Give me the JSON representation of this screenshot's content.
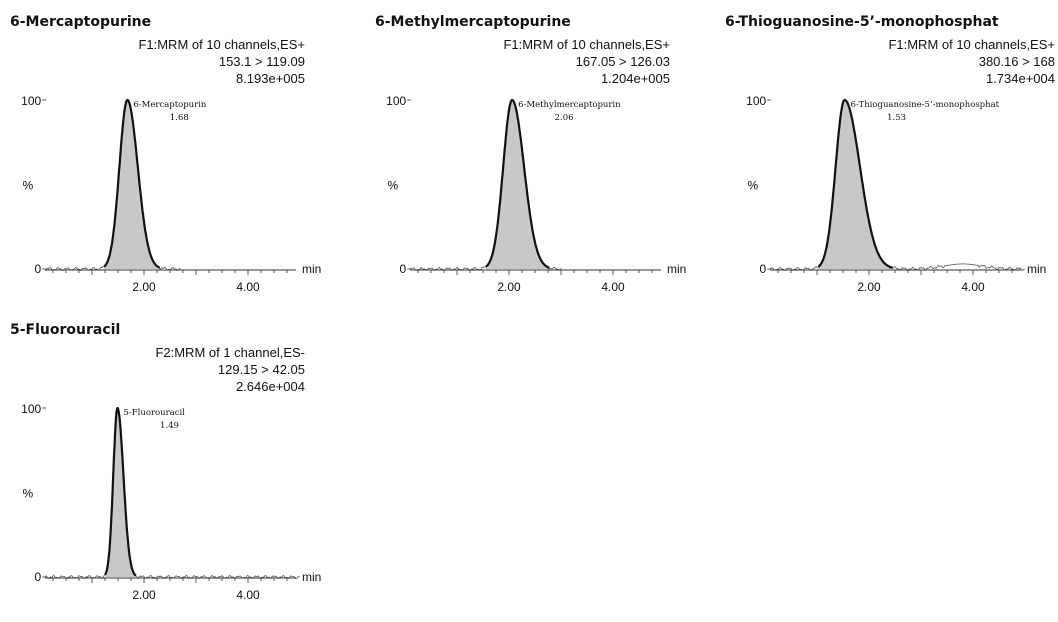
{
  "chart_data": [
    {
      "type": "area",
      "title": "6-Mercaptopurine",
      "info_lines": [
        "F1:MRM of 10 channels,ES+",
        "153.1 > 119.09",
        "8.193e+005"
      ],
      "y_label": "%",
      "y_ticks": [
        "100",
        "0"
      ],
      "x_unit": "min",
      "x_ticks": [
        "2.00",
        "4.00"
      ],
      "xlim": [
        0,
        5
      ],
      "ylim": [
        0,
        100
      ],
      "peak": {
        "name": "6-Mercaptopurin",
        "rt_label": "1.68",
        "rt": 1.68,
        "height": 100,
        "left_width": 0.32,
        "right_width": 0.42
      },
      "baseline_end": 2.7,
      "bump": null
    },
    {
      "type": "area",
      "title": "6-Methylmercaptopurine",
      "info_lines": [
        "F1:MRM of 10 channels,ES+",
        "167.05 > 126.03",
        "1.204e+005"
      ],
      "y_label": "%",
      "y_ticks": [
        "100",
        "0"
      ],
      "x_unit": "min",
      "x_ticks": [
        "2.00",
        "4.00"
      ],
      "xlim": [
        0,
        5
      ],
      "ylim": [
        0,
        100
      ],
      "peak": {
        "name": "6-Methylmercaptopurin",
        "rt_label": "2.06",
        "rt": 2.06,
        "height": 100,
        "left_width": 0.36,
        "right_width": 0.48
      },
      "baseline_end": 3.0,
      "bump": null
    },
    {
      "type": "area",
      "title": "6-Thioguanosine-5’-monophosphat",
      "info_lines": [
        "F1:MRM of 10 channels,ES+",
        "380.16 > 168",
        "1.734e+004"
      ],
      "y_label": "%",
      "y_ticks": [
        "100",
        "0"
      ],
      "x_unit": "min",
      "x_ticks": [
        "2.00",
        "4.00"
      ],
      "xlim": [
        0,
        5
      ],
      "ylim": [
        0,
        100
      ],
      "peak": {
        "name": "6-Thioguanosine-5’-monophosphat",
        "rt_label": "1.53",
        "rt": 1.53,
        "height": 100,
        "left_width": 0.36,
        "right_width": 0.62
      },
      "baseline_end": 5.0,
      "bump": {
        "center": 3.8,
        "height": 3,
        "width": 0.5
      }
    },
    {
      "type": "area",
      "title": "5-Fluorouracil",
      "info_lines": [
        "F2:MRM of 1 channel,ES-",
        "129.15 > 42.05",
        "2.646e+004"
      ],
      "y_label": "%",
      "y_ticks": [
        "100",
        "0"
      ],
      "x_unit": "min",
      "x_ticks": [
        "2.00",
        "4.00"
      ],
      "xlim": [
        0,
        5
      ],
      "ylim": [
        0,
        100
      ],
      "peak": {
        "name": "5-Fluorouracil",
        "rt_label": "1.49",
        "rt": 1.49,
        "height": 100,
        "left_width": 0.17,
        "right_width": 0.24
      },
      "baseline_end": 5.0,
      "bump": null
    }
  ]
}
